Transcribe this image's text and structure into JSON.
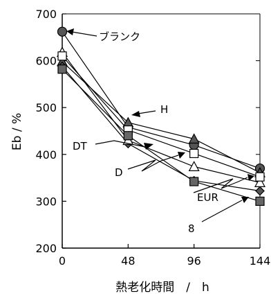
{
  "chart_data": {
    "type": "line",
    "xlabel": "熱老化時間　/　h",
    "ylabel": "Eb / %",
    "xlim": [
      0,
      144
    ],
    "ylim": [
      200,
      700
    ],
    "x_ticks": [
      "0",
      "48",
      "96",
      "144"
    ],
    "y_ticks": [
      "200",
      "300",
      "400",
      "500",
      "600",
      "700"
    ],
    "grid": false,
    "x": [
      0,
      48,
      96,
      144
    ],
    "series": [
      {
        "name": "ブランク",
        "marker": "circle",
        "fill": "#555555",
        "values": [
          662,
          458,
          420,
          370
        ]
      },
      {
        "name": "H",
        "marker": "triangle",
        "fill": "#555555",
        "values": [
          598,
          468,
          433,
          361
        ]
      },
      {
        "name": "DT",
        "marker": "diamond",
        "fill": "#555555",
        "values": [
          588,
          423,
          344,
          322
        ]
      },
      {
        "name": "D",
        "marker": "triangle",
        "fill": "#ffffff",
        "values": [
          618,
          430,
          374,
          340
        ]
      },
      {
        "name": "",
        "marker": "square",
        "fill": "#ffffff",
        "values": [
          610,
          452,
          402,
          352
        ]
      },
      {
        "name": "8",
        "marker": "square",
        "fill": "#666666",
        "values": [
          582,
          440,
          342,
          300
        ]
      }
    ],
    "annotations": [
      {
        "text": "ブランク"
      },
      {
        "text": "H"
      },
      {
        "text": "DT"
      },
      {
        "text": "D"
      },
      {
        "text": "EUR"
      },
      {
        "text": "8"
      }
    ]
  }
}
